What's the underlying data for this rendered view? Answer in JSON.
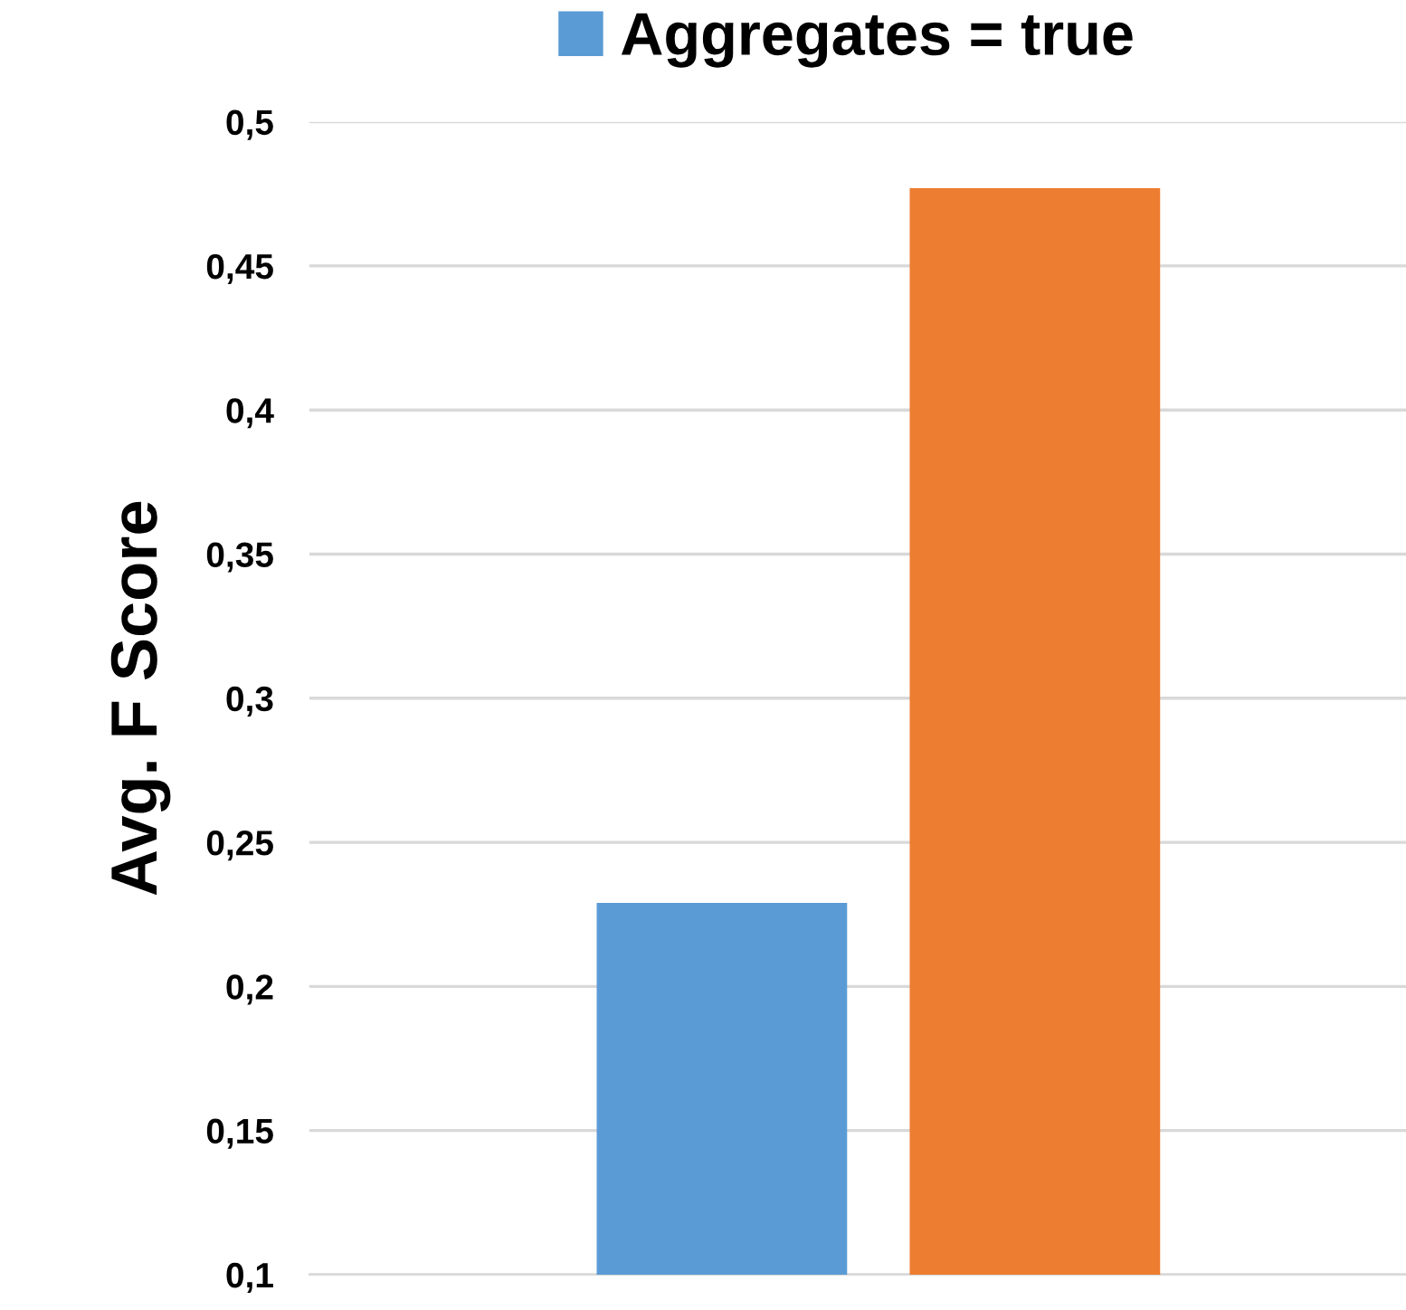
{
  "chart_data": {
    "type": "bar",
    "ylabel": "Avg. F Score",
    "categories": [
      null
    ],
    "series": [
      {
        "name": "Aggregates = true",
        "color": "#5b9bd5",
        "values": [
          0.229
        ]
      },
      {
        "color": "#ed7d31",
        "values": [
          0.477
        ]
      }
    ],
    "ylim": [
      0.1,
      0.5
    ],
    "yticks": [
      {
        "value": 0.1,
        "label": "0,1"
      },
      {
        "value": 0.15,
        "label": "0,15"
      },
      {
        "value": 0.2,
        "label": "0,2"
      },
      {
        "value": 0.25,
        "label": "0,25"
      },
      {
        "value": 0.3,
        "label": "0,3"
      },
      {
        "value": 0.35,
        "label": "0,35"
      },
      {
        "value": 0.4,
        "label": "0,4"
      },
      {
        "value": 0.45,
        "label": "0,45"
      },
      {
        "value": 0.5,
        "label": "0,5"
      }
    ],
    "grid": "y",
    "legend": "top"
  }
}
